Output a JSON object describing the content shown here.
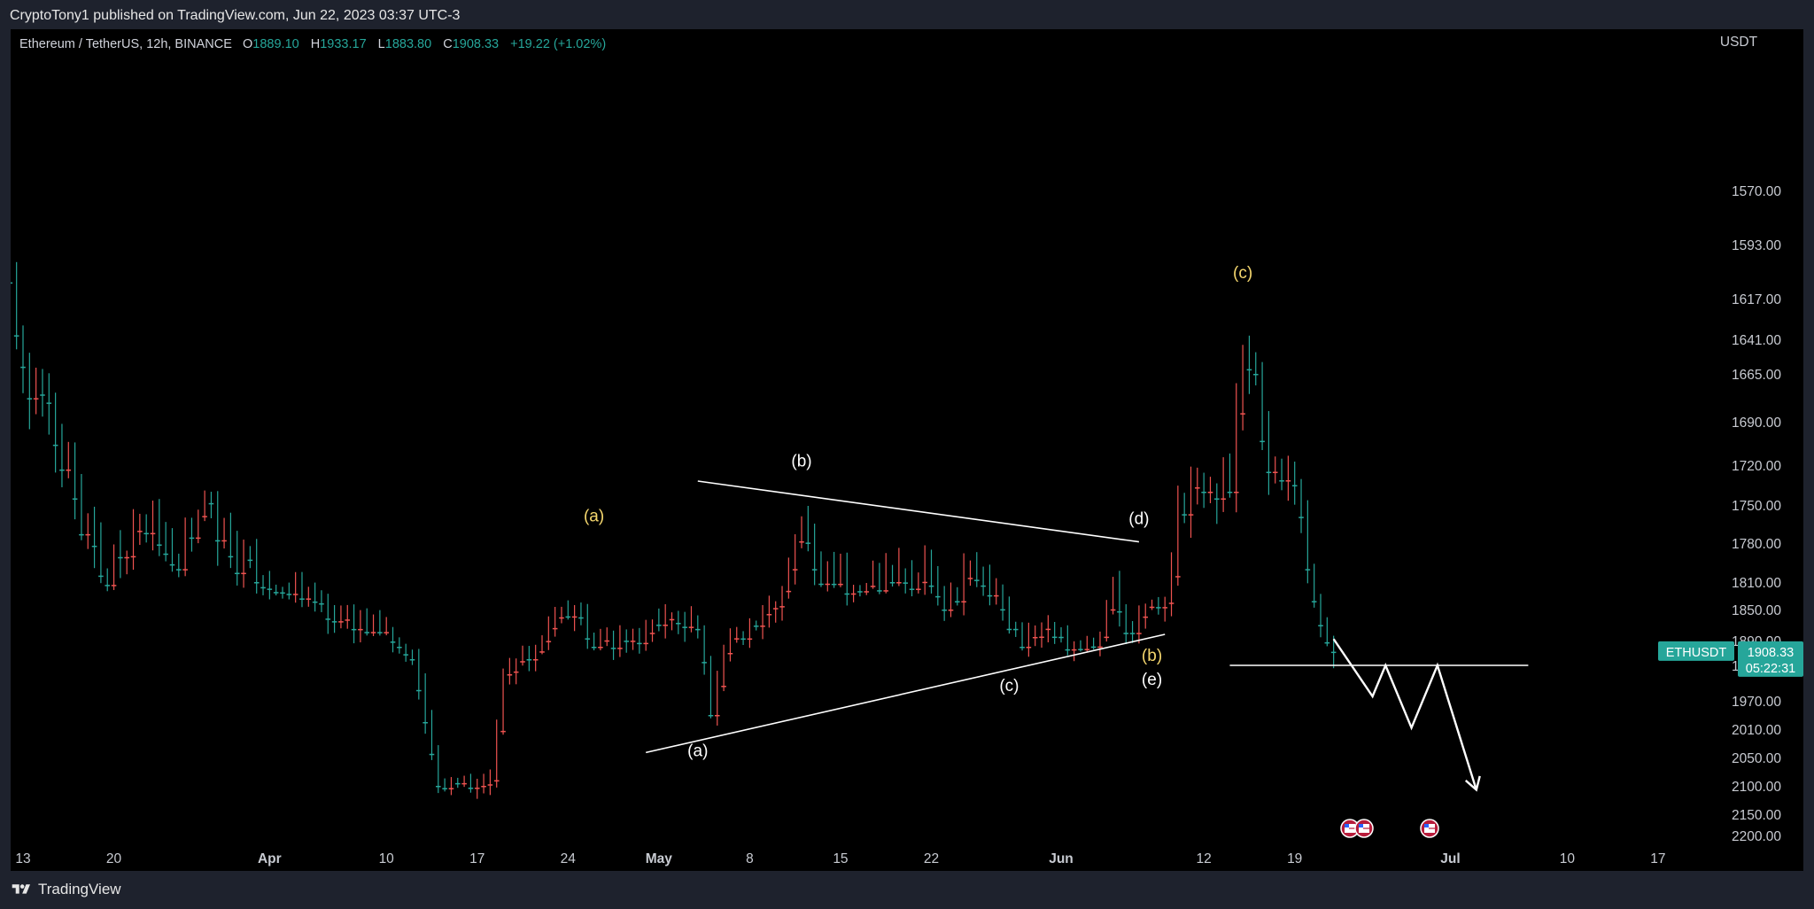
{
  "publisher_line": "CryptoTony1 published on TradingView.com, Jun 22, 2023 03:37 UTC-3",
  "footer_brand": "TradingView",
  "legend": {
    "symbol": "Ethereum / TetherUS, 12h, BINANCE",
    "open_label": "O",
    "open": "1889.10",
    "high_label": "H",
    "high": "1933.17",
    "low_label": "L",
    "low": "1883.80",
    "close_label": "C",
    "close": "1908.33",
    "change": "+19.22 (+1.02%)"
  },
  "price_tag": {
    "ticker": "ETHUSDT",
    "price": "1908.33",
    "countdown": "05:22:31"
  },
  "colors": {
    "up": "#26a69a",
    "down": "#ef5350",
    "background": "#000000",
    "annotation_white": "#ffffff",
    "annotation_yellow": "#f5d76e"
  },
  "chart_data": {
    "type": "candlestick",
    "symbol": "ETHUSDT",
    "interval": "12h",
    "exchange": "BINANCE",
    "y_unit": "USDT",
    "y_ticks": [
      2200,
      2150,
      2100,
      2050,
      2010,
      1970,
      1930,
      1890,
      1850,
      1810,
      1780,
      1750,
      1720,
      1690,
      1665,
      1641,
      1617,
      1593,
      1570
    ],
    "y_tick_labels": [
      "2200.00",
      "2150.00",
      "2100.00",
      "2050.00",
      "2010.00",
      "1970.00",
      "1930.00",
      "1890.00",
      "1850.00",
      "1810.00",
      "1780.00",
      "1750.00",
      "1720.00",
      "1690.00",
      "1665.00",
      "1641.00",
      "1617.00",
      "1593.00",
      "1570.00"
    ],
    "x_tick_labels": [
      "13",
      "20",
      "Apr",
      "10",
      "17",
      "24",
      "May",
      "8",
      "15",
      "22",
      "Jun",
      "12",
      "19",
      "Jul",
      "10",
      "17"
    ],
    "x_tick_dates": [
      "2023-03-13",
      "2023-03-20",
      "2023-04-01",
      "2023-04-10",
      "2023-04-17",
      "2023-04-24",
      "2023-05-01",
      "2023-05-08",
      "2023-05-15",
      "2023-05-22",
      "2023-06-01",
      "2023-06-12",
      "2023-06-19",
      "2023-07-01",
      "2023-07-10",
      "2023-07-17"
    ],
    "anchors": [
      {
        "date": "2023-03-11",
        "price": 1570
      },
      {
        "date": "2023-03-13",
        "price": 1660
      },
      {
        "date": "2023-03-15",
        "price": 1680
      },
      {
        "date": "2023-03-17",
        "price": 1745
      },
      {
        "date": "2023-03-19",
        "price": 1805
      },
      {
        "date": "2023-03-21",
        "price": 1790
      },
      {
        "date": "2023-03-23",
        "price": 1760
      },
      {
        "date": "2023-03-25",
        "price": 1800
      },
      {
        "date": "2023-03-27",
        "price": 1745
      },
      {
        "date": "2023-03-29",
        "price": 1790
      },
      {
        "date": "2023-03-31",
        "price": 1810
      },
      {
        "date": "2023-04-03",
        "price": 1820
      },
      {
        "date": "2023-04-06",
        "price": 1865
      },
      {
        "date": "2023-04-09",
        "price": 1870
      },
      {
        "date": "2023-04-11",
        "price": 1900
      },
      {
        "date": "2023-04-12",
        "price": 1920
      },
      {
        "date": "2023-04-13",
        "price": 2000
      },
      {
        "date": "2023-04-14",
        "price": 2100
      },
      {
        "date": "2023-04-15",
        "price": 2090
      },
      {
        "date": "2023-04-17",
        "price": 2100
      },
      {
        "date": "2023-04-18",
        "price": 2090
      },
      {
        "date": "2023-04-19",
        "price": 1940
      },
      {
        "date": "2023-04-21",
        "price": 1920
      },
      {
        "date": "2023-04-23",
        "price": 1860
      },
      {
        "date": "2023-04-25",
        "price": 1860
      },
      {
        "date": "2023-04-26",
        "price": 1900
      },
      {
        "date": "2023-04-28",
        "price": 1890
      },
      {
        "date": "2023-04-30",
        "price": 1880
      },
      {
        "date": "2023-05-02",
        "price": 1860
      },
      {
        "date": "2023-05-04",
        "price": 1875
      },
      {
        "date": "2023-05-05",
        "price": 1990
      },
      {
        "date": "2023-05-06",
        "price": 1910
      },
      {
        "date": "2023-05-08",
        "price": 1870
      },
      {
        "date": "2023-05-10",
        "price": 1845
      },
      {
        "date": "2023-05-11",
        "price": 1800
      },
      {
        "date": "2023-05-12",
        "price": 1770
      },
      {
        "date": "2023-05-13",
        "price": 1800
      },
      {
        "date": "2023-05-16",
        "price": 1820
      },
      {
        "date": "2023-05-19",
        "price": 1810
      },
      {
        "date": "2023-05-22",
        "price": 1815
      },
      {
        "date": "2023-05-23",
        "price": 1850
      },
      {
        "date": "2023-05-25",
        "price": 1800
      },
      {
        "date": "2023-05-27",
        "price": 1825
      },
      {
        "date": "2023-05-29",
        "price": 1900
      },
      {
        "date": "2023-05-31",
        "price": 1870
      },
      {
        "date": "2023-06-02",
        "price": 1900
      },
      {
        "date": "2023-06-04",
        "price": 1885
      },
      {
        "date": "2023-06-05",
        "price": 1820
      },
      {
        "date": "2023-06-06",
        "price": 1880
      },
      {
        "date": "2023-06-08",
        "price": 1840
      },
      {
        "date": "2023-06-09",
        "price": 1840
      },
      {
        "date": "2023-06-10",
        "price": 1750
      },
      {
        "date": "2023-06-12",
        "price": 1740
      },
      {
        "date": "2023-06-13",
        "price": 1745
      },
      {
        "date": "2023-06-14",
        "price": 1740
      },
      {
        "date": "2023-06-15",
        "price": 1650
      },
      {
        "date": "2023-06-16",
        "price": 1665
      },
      {
        "date": "2023-06-17",
        "price": 1725
      },
      {
        "date": "2023-06-19",
        "price": 1735
      },
      {
        "date": "2023-06-20",
        "price": 1800
      },
      {
        "date": "2023-06-21",
        "price": 1870
      },
      {
        "date": "2023-06-22",
        "price": 1908
      }
    ],
    "annotations": {
      "triangle_upper": [
        {
          "date": "2023-04-30",
          "price": 2043
        },
        {
          "date": "2023-06-09",
          "price": 1882
        }
      ],
      "triangle_lower": [
        {
          "date": "2023-05-04",
          "price": 1732
        },
        {
          "date": "2023-06-07",
          "price": 1779
        }
      ],
      "resistance": [
        {
          "date": "2023-06-14",
          "price": 1930
        },
        {
          "date": "2023-07-07",
          "price": 1930
        }
      ],
      "projection": [
        {
          "date": "2023-06-22",
          "price": 1888
        },
        {
          "date": "2023-06-25",
          "price": 1965
        },
        {
          "date": "2023-06-26",
          "price": 1930
        },
        {
          "date": "2023-06-28",
          "price": 2008
        },
        {
          "date": "2023-06-30",
          "price": 1930
        },
        {
          "date": "2023-07-03",
          "price": 2107
        }
      ],
      "labels_white": [
        {
          "text": "(a)",
          "date": "2023-05-04",
          "price": 2048
        },
        {
          "text": "(b)",
          "date": "2023-05-12",
          "price": 1721
        },
        {
          "text": "(c)",
          "date": "2023-05-28",
          "price": 1959
        },
        {
          "text": "(d)",
          "date": "2023-06-07",
          "price": 1765
        },
        {
          "text": "(e)",
          "date": "2023-06-08",
          "price": 1952
        }
      ],
      "labels_yellow": [
        {
          "text": "(a)",
          "date": "2023-04-26",
          "price": 1763
        },
        {
          "text": "(b)",
          "date": "2023-06-08",
          "price": 1923
        },
        {
          "text": "(c)",
          "date": "2023-06-15",
          "price": 1608
        }
      ]
    }
  }
}
